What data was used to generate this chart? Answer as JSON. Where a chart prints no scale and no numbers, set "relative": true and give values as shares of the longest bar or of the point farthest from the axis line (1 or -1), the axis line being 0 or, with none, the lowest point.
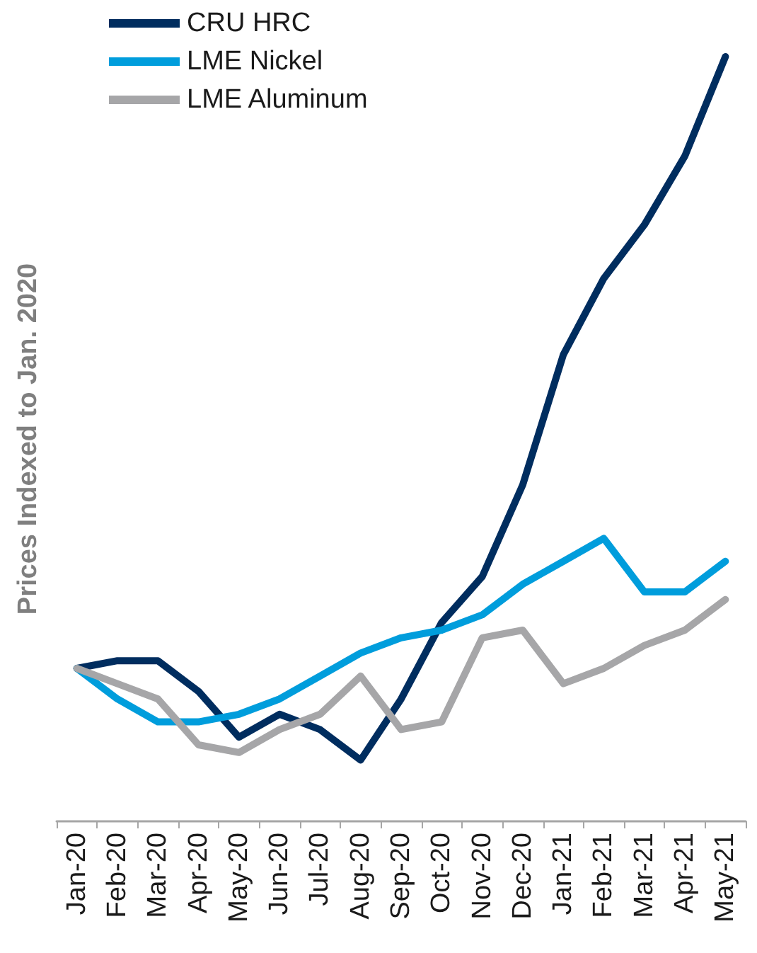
{
  "chart_data": {
    "type": "line",
    "ylabel": "Prices Indexed to Jan. 2020",
    "relative": true,
    "legend": "top left",
    "grid": false,
    "marker": "none",
    "line_style": "solid",
    "categories": [
      "Jan-20",
      "Feb-20",
      "Mar-20",
      "Apr-20",
      "May-20",
      "Jun-20",
      "Jul-20",
      "Aug-20",
      "Sep-20",
      "Oct-20",
      "Nov-20",
      "Dec-20",
      "Jan-21",
      "Feb-21",
      "Mar-21",
      "Apr-21",
      "May-21"
    ],
    "series": [
      {
        "name": "CRU HRC",
        "color": "#002d5f",
        "values": [
          0.2,
          0.21,
          0.21,
          0.17,
          0.11,
          0.14,
          0.12,
          0.08,
          0.16,
          0.26,
          0.32,
          0.44,
          0.61,
          0.71,
          0.78,
          0.87,
          1
        ]
      },
      {
        "name": "LME Nickel",
        "color": "#009ddc",
        "values": [
          0.2,
          0.16,
          0.13,
          0.13,
          0.14,
          0.16,
          0.19,
          0.22,
          0.24,
          0.25,
          0.27,
          0.31,
          0.34,
          0.37,
          0.3,
          0.3,
          0.34
        ]
      },
      {
        "name": "LME Aluminum",
        "color": "#a6a6a8",
        "values": [
          0.2,
          0.18,
          0.16,
          0.1,
          0.09,
          0.12,
          0.14,
          0.19,
          0.12,
          0.13,
          0.24,
          0.25,
          0.18,
          0.2,
          0.23,
          0.25,
          0.29
        ]
      }
    ]
  }
}
